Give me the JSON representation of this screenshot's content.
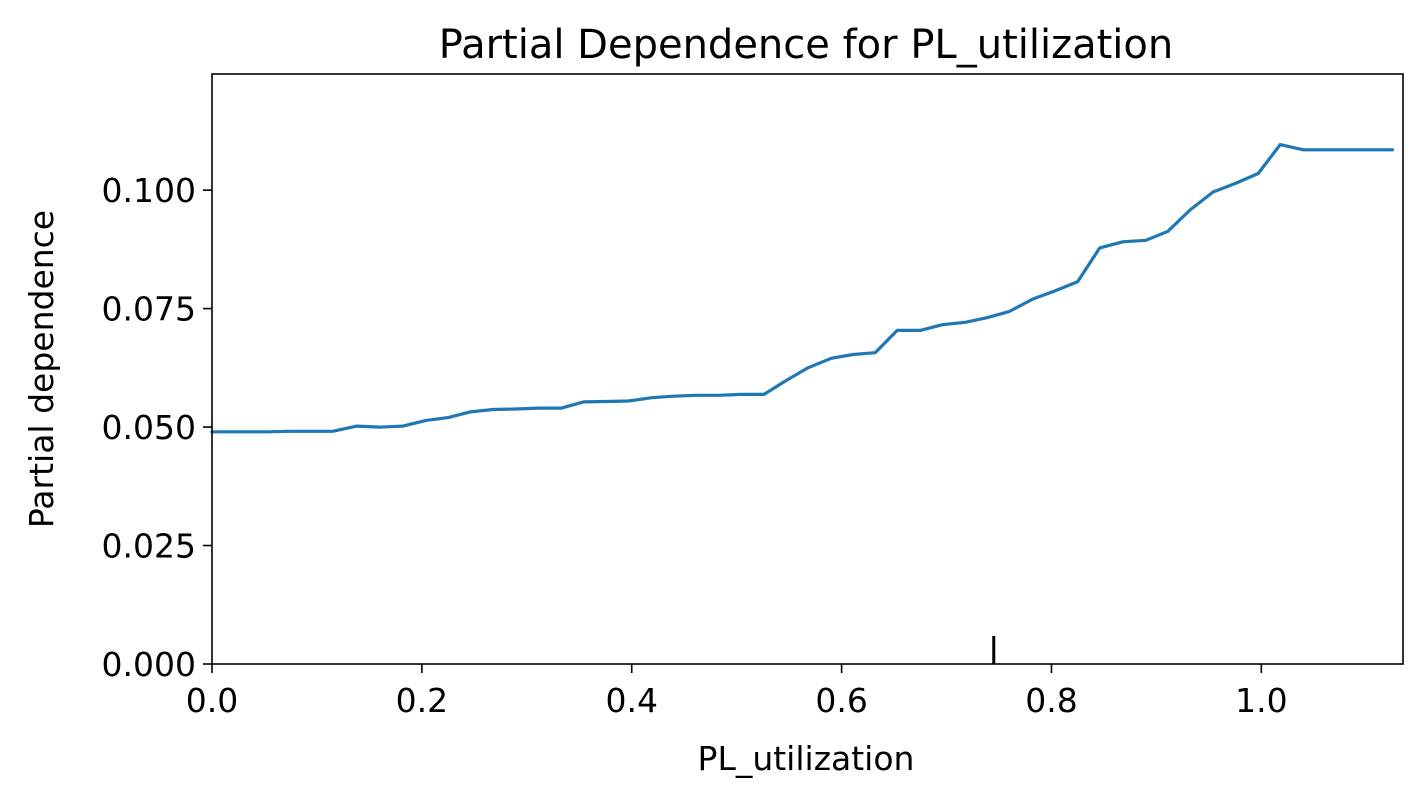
{
  "chart_data": {
    "type": "line",
    "title": "Partial Dependence for PL_utilization",
    "xlabel": "PL_utilization",
    "ylabel": "Partial dependence",
    "xlim": [
      0.0,
      1.135
    ],
    "ylim": [
      0.0,
      0.1245
    ],
    "x_ticks": [
      0.0,
      0.2,
      0.4,
      0.6,
      0.8,
      1.0
    ],
    "x_tick_labels": [
      "0.0",
      "0.2",
      "0.4",
      "0.6",
      "0.8",
      "1.0"
    ],
    "y_ticks": [
      0.0,
      0.025,
      0.05,
      0.075,
      0.1
    ],
    "y_tick_labels": [
      "0.000",
      "0.025",
      "0.050",
      "0.075",
      "0.100"
    ],
    "grid": false,
    "legend": "none",
    "series": [
      {
        "color": "#1f77b4",
        "x": [
          0.0,
          0.052,
          0.073,
          0.115,
          0.138,
          0.16,
          0.182,
          0.204,
          0.225,
          0.246,
          0.268,
          0.29,
          0.311,
          0.333,
          0.354,
          0.376,
          0.397,
          0.419,
          0.44,
          0.461,
          0.483,
          0.504,
          0.526,
          0.547,
          0.568,
          0.59,
          0.611,
          0.632,
          0.653,
          0.675,
          0.696,
          0.718,
          0.739,
          0.76,
          0.782,
          0.804,
          0.825,
          0.846,
          0.868,
          0.89,
          0.911,
          0.932,
          0.954,
          0.975,
          0.997,
          1.018,
          1.04,
          1.061,
          1.083,
          1.104,
          1.125
        ],
        "y": [
          0.049,
          0.049,
          0.0491,
          0.0491,
          0.0502,
          0.05,
          0.0502,
          0.0514,
          0.052,
          0.0532,
          0.0537,
          0.0538,
          0.054,
          0.054,
          0.0553,
          0.0554,
          0.0555,
          0.0562,
          0.0565,
          0.0567,
          0.0567,
          0.0569,
          0.0569,
          0.0598,
          0.0625,
          0.0645,
          0.0653,
          0.0657,
          0.0704,
          0.0704,
          0.0716,
          0.0721,
          0.0731,
          0.0744,
          0.077,
          0.0788,
          0.0807,
          0.0878,
          0.0891,
          0.0894,
          0.0913,
          0.0958,
          0.0996,
          0.1014,
          0.1035,
          0.1096,
          0.1085,
          0.1085,
          0.1085,
          0.1085,
          0.1085
        ]
      }
    ],
    "rug": [
      0.745
    ]
  }
}
